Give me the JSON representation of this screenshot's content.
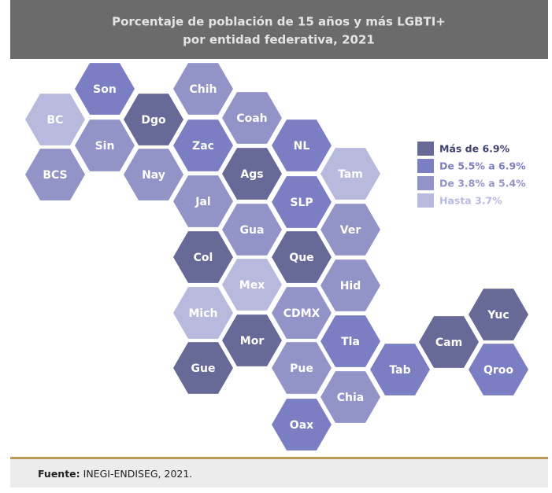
{
  "header": {
    "title_lines": [
      "Porcentaje de población de 15 años y más LGBTI+",
      "por entidad federativa, 2021"
    ]
  },
  "legend": [
    {
      "label": "Más de 6.9%",
      "color": "#676a97"
    },
    {
      "label": "De 5.5% a 6.9%",
      "color": "#7b7ec2"
    },
    {
      "label": "De 3.8% a 5.4%",
      "color": "#9294c7"
    },
    {
      "label": "Hasta 3.7%",
      "color": "#b8badd"
    }
  ],
  "states": [
    {
      "label": "BC",
      "class": 3
    },
    {
      "label": "BCS",
      "class": 2
    },
    {
      "label": "Son",
      "class": 1
    },
    {
      "label": "Sin",
      "class": 2
    },
    {
      "label": "Dgo",
      "class": 0
    },
    {
      "label": "Nay",
      "class": 2
    },
    {
      "label": "Chih",
      "class": 2
    },
    {
      "label": "Zac",
      "class": 1
    },
    {
      "label": "Jal",
      "class": 2
    },
    {
      "label": "Col",
      "class": 0
    },
    {
      "label": "Mich",
      "class": 3
    },
    {
      "label": "Gue",
      "class": 0
    },
    {
      "label": "Coah",
      "class": 2
    },
    {
      "label": "Ags",
      "class": 0
    },
    {
      "label": "Gua",
      "class": 2
    },
    {
      "label": "Mex",
      "class": 3
    },
    {
      "label": "Mor",
      "class": 0
    },
    {
      "label": "NL",
      "class": 1
    },
    {
      "label": "SLP",
      "class": 1
    },
    {
      "label": "Que",
      "class": 0
    },
    {
      "label": "CDMX",
      "class": 2
    },
    {
      "label": "Pue",
      "class": 2
    },
    {
      "label": "Oax",
      "class": 1
    },
    {
      "label": "Tam",
      "class": 3
    },
    {
      "label": "Ver",
      "class": 2
    },
    {
      "label": "Hid",
      "class": 2
    },
    {
      "label": "Tla",
      "class": 1
    },
    {
      "label": "Chia",
      "class": 2
    },
    {
      "label": "Tab",
      "class": 1
    },
    {
      "label": "Cam",
      "class": 0
    },
    {
      "label": "Yuc",
      "class": 0
    },
    {
      "label": "Qroo",
      "class": 1
    }
  ],
  "footer": {
    "source_label": "Fuente:",
    "source_text": "INEGI-ENDISEG, 2021."
  }
}
